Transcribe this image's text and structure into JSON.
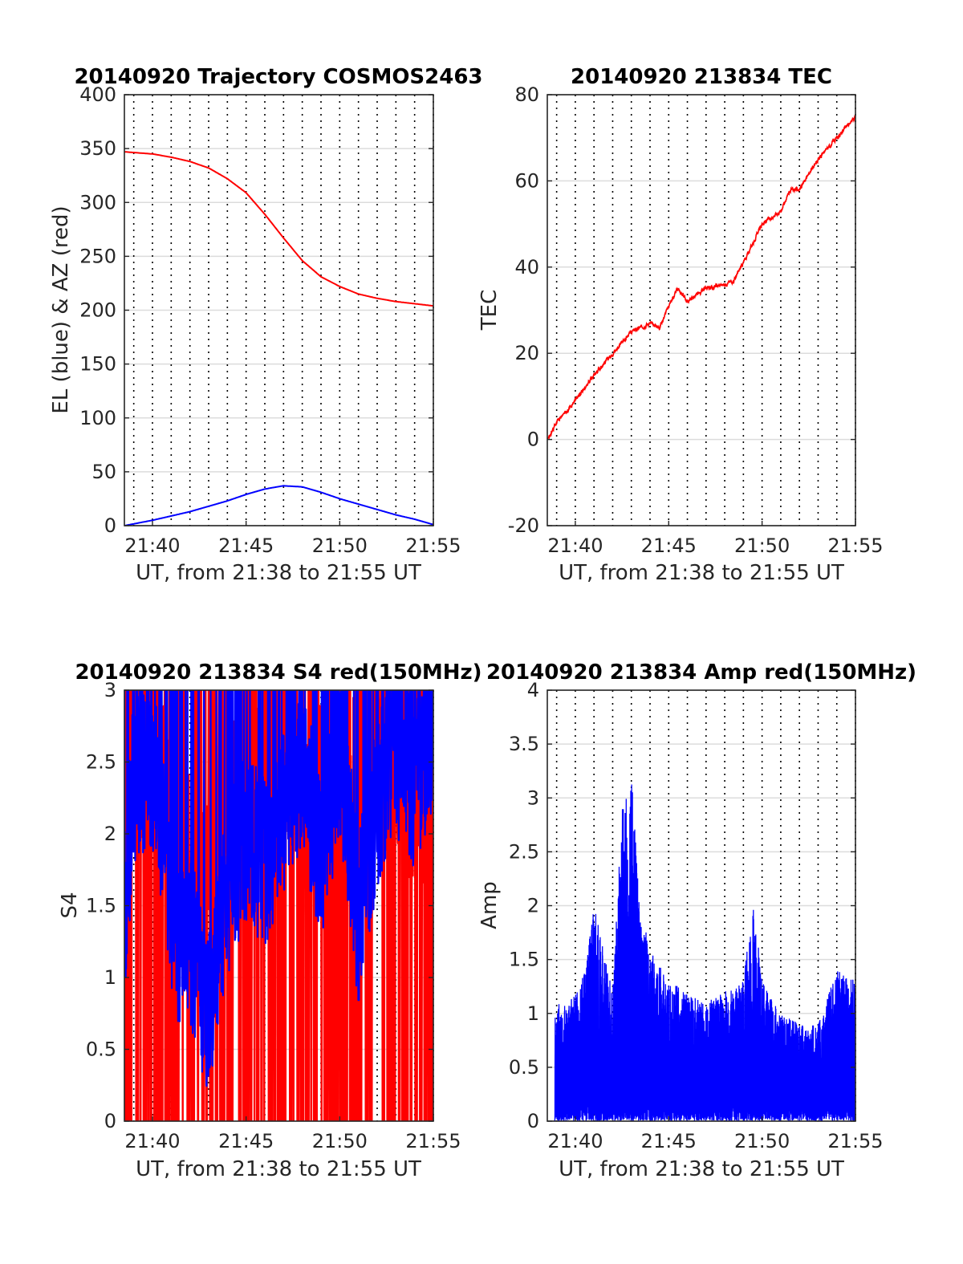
{
  "chart_data": [
    {
      "type": "line",
      "title": "20140920 Trajectory COSMOS2463",
      "xlabel": "UT, from 21:38 to 21:55 UT",
      "ylabel": "EL (blue) & AZ (red)",
      "xlim": [
        "21:38:30",
        "21:55"
      ],
      "ylim": [
        0,
        400
      ],
      "xticks": [
        "21:40",
        "21:45",
        "21:50",
        "21:55"
      ],
      "yticks": [
        "0",
        "50",
        "100",
        "150",
        "200",
        "250",
        "300",
        "350",
        "400"
      ],
      "grid": true,
      "series": [
        {
          "color": "#ff0000",
          "x": [
            "21:38:30",
            "21:40",
            "21:41",
            "21:42",
            "21:43",
            "21:44",
            "21:45",
            "21:46",
            "21:47",
            "21:48",
            "21:49",
            "21:50",
            "21:51",
            "21:52",
            "21:53",
            "21:54",
            "21:55"
          ],
          "values": [
            347,
            345,
            342,
            338,
            332,
            322,
            309,
            289,
            267,
            246,
            231,
            222,
            215,
            211,
            208,
            206,
            204
          ]
        },
        {
          "color": "#0000ff",
          "x": [
            "21:38:30",
            "21:40",
            "21:41",
            "21:42",
            "21:43",
            "21:44",
            "21:45",
            "21:46",
            "21:47",
            "21:48",
            "21:49",
            "21:50",
            "21:51",
            "21:52",
            "21:53",
            "21:54",
            "21:55"
          ],
          "values": [
            0,
            5,
            9,
            13,
            18,
            23,
            29,
            34,
            37,
            36,
            31,
            25,
            20,
            15,
            10,
            6,
            1
          ]
        }
      ]
    },
    {
      "type": "line",
      "title": "20140920 213834 TEC",
      "xlabel": "UT, from 21:38 to 21:55 UT",
      "ylabel": "TEC",
      "xlim": [
        "21:38:30",
        "21:55"
      ],
      "ylim": [
        -20,
        80
      ],
      "xticks": [
        "21:40",
        "21:45",
        "21:50",
        "21:55"
      ],
      "yticks": [
        "-20",
        "0",
        "20",
        "40",
        "60",
        "80"
      ],
      "grid": true,
      "series": [
        {
          "color": "#ff0000",
          "x": [
            "21:38:30",
            "21:39",
            "21:40",
            "21:41",
            "21:42",
            "21:43",
            "21:44",
            "21:44:30",
            "21:45",
            "21:45:30",
            "21:46",
            "21:47",
            "21:48",
            "21:48:30",
            "21:49",
            "21:50",
            "21:51",
            "21:51:30",
            "21:52",
            "21:53",
            "21:54",
            "21:55"
          ],
          "values": [
            0,
            4,
            9,
            15,
            20,
            25,
            27,
            26,
            31,
            35,
            32,
            35,
            36,
            37,
            41,
            50,
            53,
            58,
            58,
            65,
            70,
            75
          ]
        }
      ]
    },
    {
      "type": "line",
      "title": "20140920 213834 S4 red(150MHz)",
      "xlabel": "UT, from 21:38 to 21:55 UT",
      "ylabel": "S4",
      "xlim": [
        "21:38:30",
        "21:55"
      ],
      "ylim": [
        0,
        3
      ],
      "xticks": [
        "21:40",
        "21:45",
        "21:50",
        "21:55"
      ],
      "yticks": [
        "0",
        "0.5",
        "1",
        "1.5",
        "2",
        "2.5",
        "3"
      ],
      "grid": true,
      "series": [
        {
          "color": "#ff0000",
          "x": [
            "21:38:30",
            "21:40",
            "21:41",
            "21:42",
            "21:43",
            "21:44",
            "21:45",
            "21:46",
            "21:47",
            "21:48",
            "21:49",
            "21:50",
            "21:51",
            "21:52",
            "21:53",
            "21:54",
            "21:55"
          ],
          "values": [
            2.6,
            2.8,
            2.2,
            1.7,
            1.5,
            2.0,
            2.3,
            2.4,
            2.7,
            2.4,
            2.2,
            2.3,
            2.6,
            2.8,
            2.4,
            2.5,
            2.4
          ]
        },
        {
          "color": "#0000ff",
          "x": [
            "21:38:30",
            "21:39",
            "21:40",
            "21:40:30",
            "21:41",
            "21:41:30",
            "21:42",
            "21:42:30",
            "21:43",
            "21:43:30",
            "21:44",
            "21:45",
            "21:46",
            "21:47",
            "21:48",
            "21:49",
            "21:50",
            "21:51",
            "21:52",
            "21:53",
            "21:54",
            "21:55"
          ],
          "values": [
            1.4,
            2.4,
            2.5,
            2.0,
            1.5,
            1.2,
            1.3,
            1.0,
            0.8,
            1.2,
            1.6,
            2.0,
            1.8,
            2.2,
            2.5,
            1.8,
            2.6,
            1.4,
            2.2,
            2.6,
            2.3,
            2.7
          ]
        }
      ]
    },
    {
      "type": "line",
      "title": "20140920 213834 Amp red(150MHz)",
      "xlabel": "UT, from 21:38 to 21:55 UT",
      "ylabel": "Amp",
      "xlim": [
        "21:38:30",
        "21:55"
      ],
      "ylim": [
        0,
        4
      ],
      "xticks": [
        "21:40",
        "21:45",
        "21:50",
        "21:55"
      ],
      "yticks": [
        "0",
        "0.5",
        "1",
        "1.5",
        "2",
        "2.5",
        "3",
        "3.5",
        "4"
      ],
      "grid": true,
      "series": [
        {
          "color": "#0000ff",
          "x": [
            "21:38:54",
            "21:39:30",
            "21:40",
            "21:40:30",
            "21:41",
            "21:41:30",
            "21:42",
            "21:42:30",
            "21:43",
            "21:43:30",
            "21:44",
            "21:45",
            "21:46",
            "21:47",
            "21:48",
            "21:49",
            "21:49:30",
            "21:50",
            "21:51",
            "21:52",
            "21:53",
            "21:54",
            "21:55"
          ],
          "values": [
            1.1,
            1.1,
            1.2,
            1.4,
            2.0,
            1.6,
            1.2,
            2.9,
            3.2,
            2.0,
            1.6,
            1.3,
            1.2,
            1.1,
            1.2,
            1.3,
            2.1,
            1.3,
            1.0,
            0.9,
            0.9,
            1.4,
            1.3
          ]
        }
      ]
    }
  ]
}
